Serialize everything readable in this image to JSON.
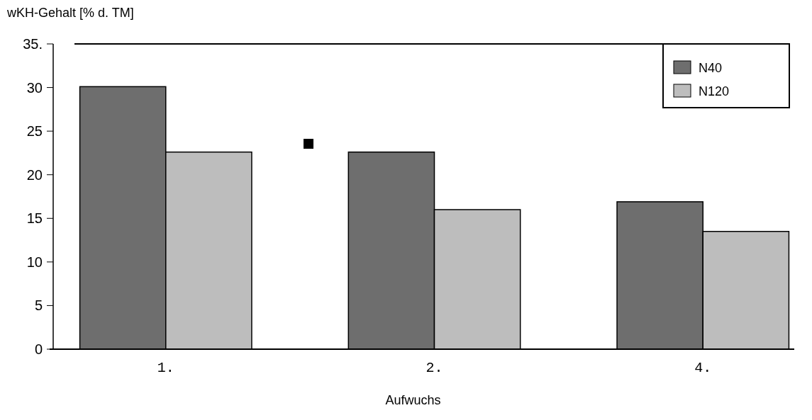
{
  "chart_data": {
    "type": "bar",
    "ylabel": "wKH-Gehalt [% d. TM]",
    "xlabel": "Aufwuchs",
    "categories": [
      "1.",
      "2.",
      "4."
    ],
    "series": [
      {
        "name": "N40",
        "color": "#6e6e6e",
        "values": [
          30.1,
          22.6,
          16.9
        ]
      },
      {
        "name": "N120",
        "color": "#bdbdbd",
        "values": [
          22.6,
          16.0,
          13.5
        ]
      }
    ],
    "ylim": [
      0,
      35
    ],
    "yticks": [
      0,
      5,
      10,
      15,
      20,
      25,
      30,
      {
        "value": 35,
        "label": "35."
      }
    ],
    "grid": false,
    "legend": "top right"
  }
}
